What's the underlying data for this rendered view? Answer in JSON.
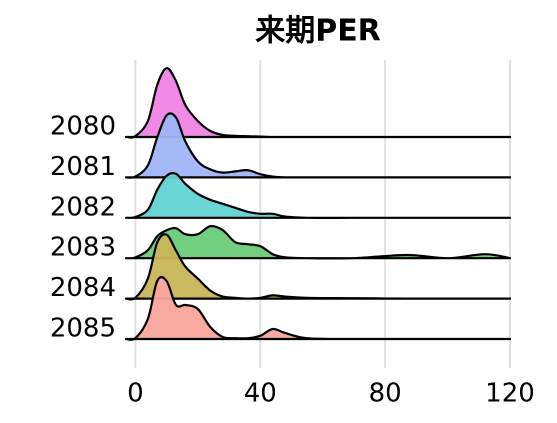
{
  "chart_data": {
    "type": "ridgeline",
    "title": "来期PER",
    "x": [
      -3,
      0,
      4,
      7,
      10,
      13,
      16,
      20,
      24,
      28,
      32,
      36,
      40,
      44,
      48,
      55,
      70,
      87,
      100,
      112,
      120
    ],
    "series": [
      {
        "name": "2080",
        "color": "#f083e6",
        "values": [
          0,
          0.02,
          0.4,
          1.3,
          1.72,
          1.4,
          0.8,
          0.4,
          0.15,
          0.05,
          0.03,
          0.02,
          0.01,
          0,
          0,
          0,
          0,
          0,
          0,
          0,
          0
        ]
      },
      {
        "name": "2081",
        "color": "#9fb5f5",
        "values": [
          0,
          0.02,
          0.3,
          1.0,
          1.55,
          1.5,
          0.9,
          0.4,
          0.2,
          0.12,
          0.15,
          0.18,
          0.08,
          0.02,
          0,
          0,
          0,
          0,
          0,
          0,
          0
        ]
      },
      {
        "name": "2082",
        "color": "#62d3d3",
        "values": [
          0,
          0.02,
          0.2,
          0.7,
          1.05,
          1.1,
          0.85,
          0.6,
          0.45,
          0.35,
          0.25,
          0.15,
          0.1,
          0.1,
          0.03,
          0,
          0,
          0,
          0,
          0,
          0
        ]
      },
      {
        "name": "2083",
        "color": "#6acc78",
        "values": [
          0,
          0.02,
          0.2,
          0.55,
          0.7,
          0.75,
          0.6,
          0.6,
          0.8,
          0.7,
          0.4,
          0.35,
          0.3,
          0.1,
          0.02,
          0,
          0,
          0.08,
          0,
          0.1,
          0
        ]
      },
      {
        "name": "2084",
        "color": "#c9b658",
        "values": [
          0,
          0.02,
          0.5,
          1.4,
          1.6,
          1.2,
          0.8,
          0.5,
          0.2,
          0.05,
          0.02,
          0,
          0.02,
          0.08,
          0.05,
          0.02,
          0.01,
          0,
          0,
          0,
          0
        ]
      },
      {
        "name": "2085",
        "color": "#f8a59c",
        "values": [
          0,
          0.02,
          0.5,
          1.45,
          1.45,
          0.85,
          0.85,
          0.75,
          0.3,
          0.05,
          0.02,
          0.02,
          0.08,
          0.25,
          0.15,
          0.02,
          0,
          0,
          0,
          0,
          0
        ]
      }
    ],
    "xlim": [
      -3,
      120
    ],
    "xticks": [
      0,
      40,
      80,
      120
    ],
    "grid": true
  }
}
